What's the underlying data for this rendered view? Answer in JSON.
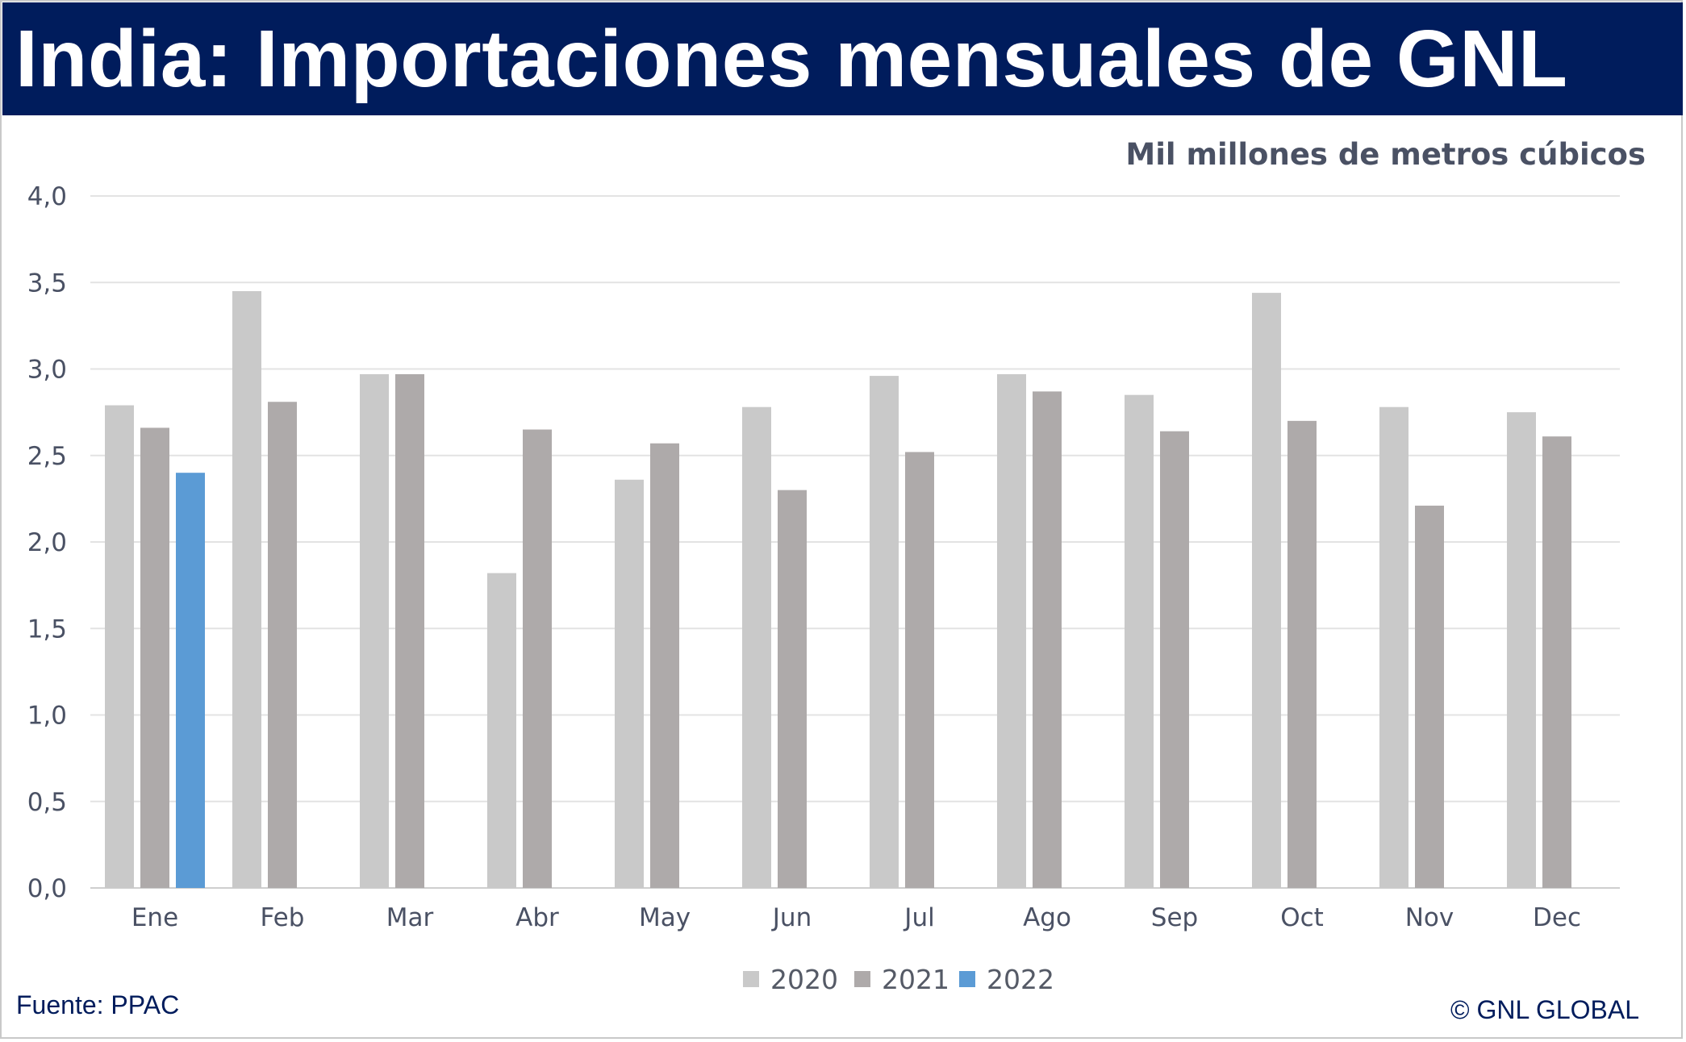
{
  "title": "India: Importaciones mensuales de GNL",
  "unit_label": "Mil millones de metros cúbicos",
  "source": "Fuente: PPAC",
  "copyright": "© GNL GLOBAL",
  "colors": {
    "title_bar": "#001c5c",
    "series_2020": "#c9c9c9",
    "series_2021": "#aeaaaa",
    "series_2022": "#5b9bd5"
  },
  "chart_data": {
    "type": "bar",
    "categories": [
      "Ene",
      "Feb",
      "Mar",
      "Abr",
      "May",
      "Jun",
      "Jul",
      "Ago",
      "Sep",
      "Oct",
      "Nov",
      "Dec"
    ],
    "series": [
      {
        "name": "2020",
        "color": "#c9c9c9",
        "values": [
          2.79,
          3.45,
          2.97,
          1.82,
          2.36,
          2.78,
          2.96,
          2.97,
          2.85,
          3.44,
          2.78,
          2.75
        ]
      },
      {
        "name": "2021",
        "color": "#aeaaaa",
        "values": [
          2.66,
          2.81,
          2.97,
          2.65,
          2.57,
          2.3,
          2.52,
          2.87,
          2.64,
          2.7,
          2.21,
          2.61
        ]
      },
      {
        "name": "2022",
        "color": "#5b9bd5",
        "values": [
          2.4,
          null,
          null,
          null,
          null,
          null,
          null,
          null,
          null,
          null,
          null,
          null
        ]
      }
    ],
    "ylim": [
      0,
      4
    ],
    "yticks": [
      "0,0",
      "0,5",
      "1,0",
      "1,5",
      "2,0",
      "2,5",
      "3,0",
      "3,5",
      "4,0"
    ],
    "grid": true,
    "legend_position": "bottom"
  }
}
